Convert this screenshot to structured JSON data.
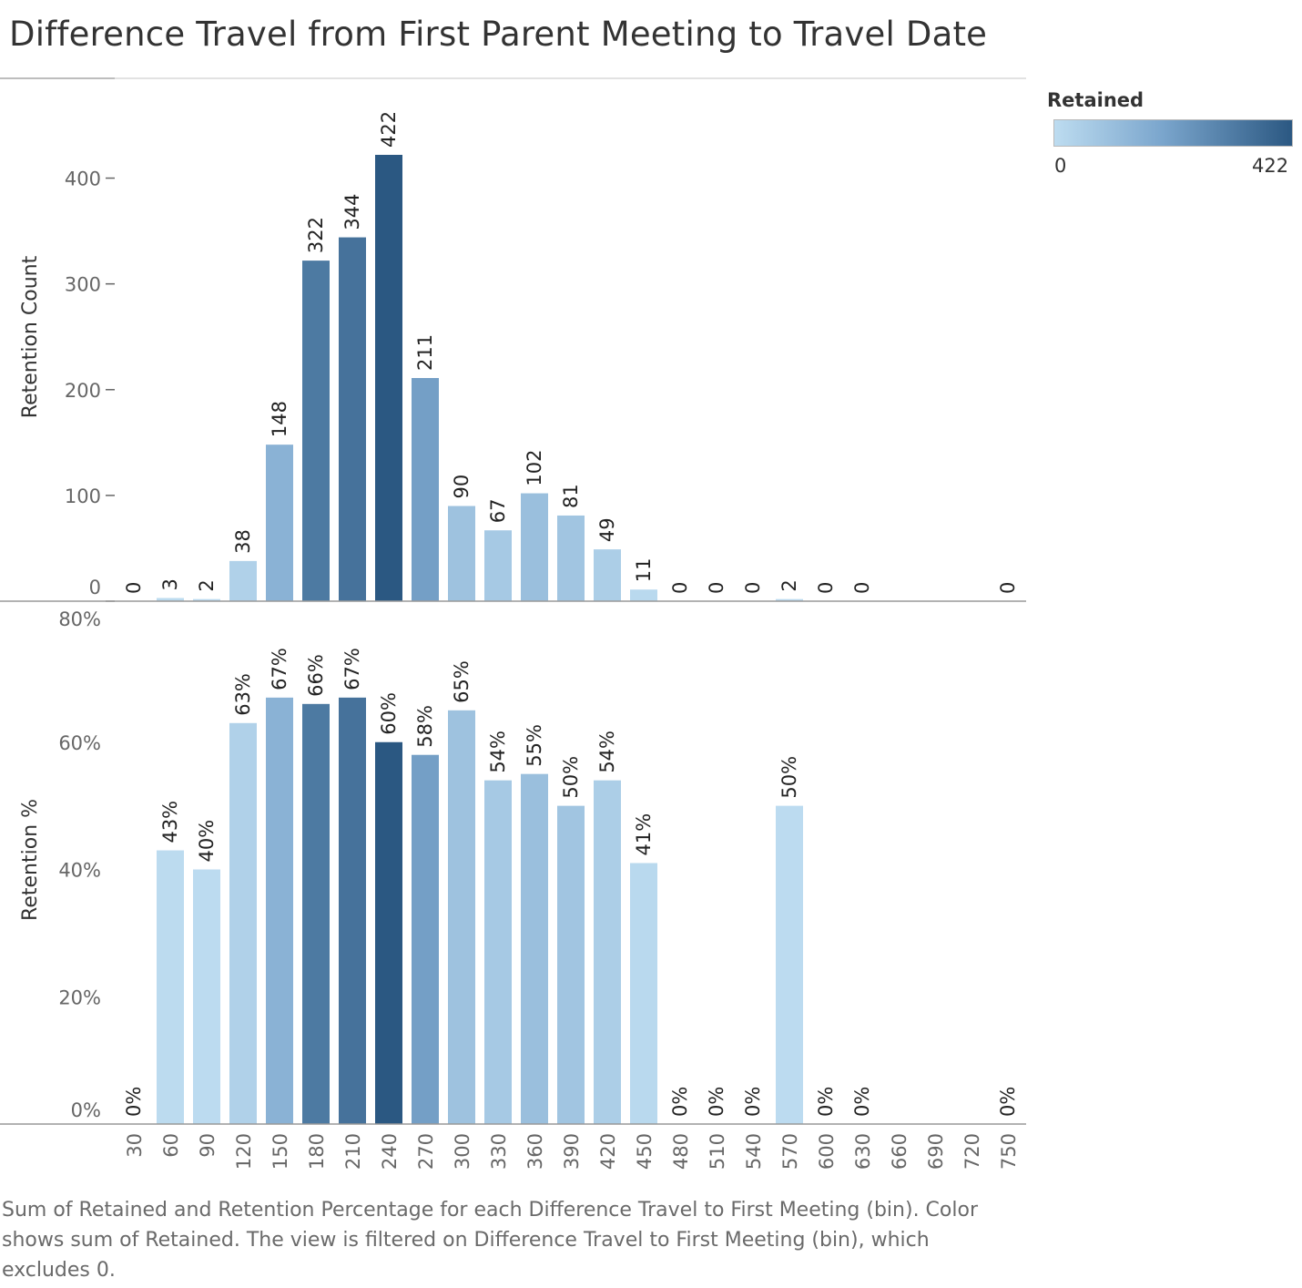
{
  "title": "Difference Travel from First Parent Meeting to Travel Date",
  "caption": "Sum of Retained and Retention Percentage for each Difference Travel to First Meeting (bin).  Color shows sum of Retained. The view is filtered on Difference Travel to First Meeting (bin), which excludes 0.",
  "legend": {
    "title": "Retained",
    "min_label": "0",
    "max_label": "422",
    "color_low": "#bddcf0",
    "color_high": "#2b5882"
  },
  "chart_data": [
    {
      "type": "bar",
      "title": "",
      "ylabel": "Retention Count",
      "ylim": [
        0,
        422
      ],
      "yticks": [
        "0",
        "100",
        "200",
        "300",
        "400"
      ],
      "categories": [
        "30",
        "60",
        "90",
        "120",
        "150",
        "180",
        "210",
        "240",
        "270",
        "300",
        "330",
        "360",
        "390",
        "420",
        "450",
        "480",
        "510",
        "540",
        "570",
        "600",
        "630",
        "660",
        "690",
        "720",
        "750"
      ],
      "values": [
        0,
        3,
        2,
        38,
        148,
        322,
        344,
        422,
        211,
        90,
        67,
        102,
        81,
        49,
        11,
        0,
        0,
        0,
        2,
        0,
        0,
        null,
        null,
        null,
        0
      ],
      "labels": [
        "0",
        "3",
        "2",
        "38",
        "148",
        "322",
        "344",
        "422",
        "211",
        "90",
        "67",
        "102",
        "81",
        "49",
        "11",
        "0",
        "0",
        "0",
        "2",
        "0",
        "0",
        "",
        "",
        "",
        "0"
      ]
    },
    {
      "type": "bar",
      "title": "",
      "xlabel": "",
      "ylabel": "Retention %",
      "ylim": [
        0,
        80
      ],
      "yticks": [
        "0%",
        "20%",
        "40%",
        "60%",
        "80%"
      ],
      "categories": [
        "30",
        "60",
        "90",
        "120",
        "150",
        "180",
        "210",
        "240",
        "270",
        "300",
        "330",
        "360",
        "390",
        "420",
        "450",
        "480",
        "510",
        "540",
        "570",
        "600",
        "630",
        "660",
        "690",
        "720",
        "750"
      ],
      "values": [
        0,
        43,
        40,
        63,
        67,
        66,
        67,
        60,
        58,
        65,
        54,
        55,
        50,
        54,
        41,
        0,
        0,
        0,
        50,
        0,
        0,
        null,
        null,
        null,
        0
      ],
      "labels": [
        "0%",
        "43%",
        "40%",
        "63%",
        "67%",
        "66%",
        "67%",
        "60%",
        "58%",
        "65%",
        "54%",
        "55%",
        "50%",
        "54%",
        "41%",
        "0%",
        "0%",
        "0%",
        "50%",
        "0%",
        "0%",
        "",
        "",
        "",
        "0%"
      ]
    }
  ]
}
